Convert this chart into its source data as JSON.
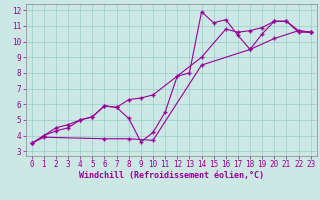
{
  "xlabel": "Windchill (Refroidissement éolien,°C)",
  "background_color": "#cce8e4",
  "grid_color": "#99cccc",
  "line_color": "#990099",
  "spine_color": "#888888",
  "xlim": [
    -0.5,
    23.5
  ],
  "ylim": [
    2.7,
    12.4
  ],
  "xticks": [
    0,
    1,
    2,
    3,
    4,
    5,
    6,
    7,
    8,
    9,
    10,
    11,
    12,
    13,
    14,
    15,
    16,
    17,
    18,
    19,
    20,
    21,
    22,
    23
  ],
  "yticks": [
    3,
    4,
    5,
    6,
    7,
    8,
    9,
    10,
    11,
    12
  ],
  "line1_x": [
    0,
    1,
    2,
    3,
    4,
    5,
    6,
    7,
    8,
    9,
    10,
    11,
    12,
    13,
    14,
    15,
    16,
    17,
    18,
    19,
    20,
    21,
    22,
    23
  ],
  "line1_y": [
    3.5,
    4.0,
    4.5,
    4.7,
    5.0,
    5.2,
    5.9,
    5.8,
    5.1,
    3.6,
    4.2,
    5.5,
    7.8,
    8.0,
    11.9,
    11.2,
    11.4,
    10.4,
    9.5,
    10.5,
    11.3,
    11.3,
    10.6,
    10.6
  ],
  "line2_x": [
    0,
    1,
    2,
    3,
    4,
    5,
    6,
    7,
    8,
    9,
    10,
    14,
    16,
    17,
    18,
    19,
    20,
    21,
    22,
    23
  ],
  "line2_y": [
    3.5,
    4.0,
    4.3,
    4.5,
    5.0,
    5.2,
    5.9,
    5.8,
    6.3,
    6.4,
    6.6,
    9.0,
    10.8,
    10.6,
    10.7,
    10.9,
    11.3,
    11.3,
    10.7,
    10.6
  ],
  "line3_x": [
    0,
    1,
    6,
    8,
    10,
    14,
    18,
    20,
    22,
    23
  ],
  "line3_y": [
    3.5,
    3.9,
    3.8,
    3.8,
    3.7,
    8.5,
    9.5,
    10.2,
    10.7,
    10.6
  ],
  "tick_fontsize": 5.5,
  "xlabel_fontsize": 6.0,
  "linewidth": 0.8,
  "markersize": 3.5,
  "markeredgewidth": 1.0
}
